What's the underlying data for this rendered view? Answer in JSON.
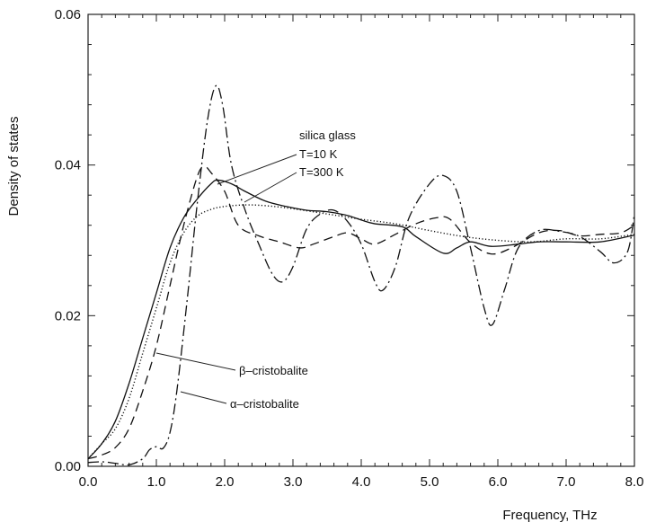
{
  "chart_data": {
    "type": "line",
    "xlabel": "Frequency, THz",
    "ylabel": "Density of states",
    "xlim": [
      0.0,
      8.0
    ],
    "ylim": [
      0.0,
      0.06
    ],
    "x_ticks": [
      "0.0",
      "1.0",
      "2.0",
      "3.0",
      "4.0",
      "5.0",
      "6.0",
      "7.0",
      "8.0"
    ],
    "y_ticks": [
      "0.00",
      "0.02",
      "0.04",
      "0.06"
    ],
    "grid": false,
    "series": [
      {
        "name": "T=10 K",
        "style": "solid",
        "points": [
          [
            0,
            0.001
          ],
          [
            0.2,
            0.003
          ],
          [
            0.4,
            0.006
          ],
          [
            0.6,
            0.011
          ],
          [
            0.8,
            0.017
          ],
          [
            1.0,
            0.023
          ],
          [
            1.2,
            0.029
          ],
          [
            1.4,
            0.033
          ],
          [
            1.6,
            0.0355
          ],
          [
            1.8,
            0.0375
          ],
          [
            1.9,
            0.038
          ],
          [
            2.1,
            0.0375
          ],
          [
            2.3,
            0.0365
          ],
          [
            2.6,
            0.0352
          ],
          [
            2.9,
            0.0345
          ],
          [
            3.2,
            0.034
          ],
          [
            3.5,
            0.0338
          ],
          [
            3.8,
            0.0333
          ],
          [
            4.0,
            0.0327
          ],
          [
            4.2,
            0.0322
          ],
          [
            4.6,
            0.0318
          ],
          [
            4.8,
            0.0305
          ],
          [
            5.2,
            0.0283
          ],
          [
            5.4,
            0.029
          ],
          [
            5.6,
            0.0298
          ],
          [
            5.9,
            0.0292
          ],
          [
            6.3,
            0.0295
          ],
          [
            6.6,
            0.0298
          ],
          [
            7.0,
            0.0298
          ],
          [
            7.5,
            0.0298
          ],
          [
            8.0,
            0.0307
          ]
        ]
      },
      {
        "name": "T=300 K",
        "style": "dotted",
        "points": [
          [
            0,
            0.001
          ],
          [
            0.2,
            0.003
          ],
          [
            0.4,
            0.005
          ],
          [
            0.6,
            0.009
          ],
          [
            0.8,
            0.015
          ],
          [
            1.0,
            0.021
          ],
          [
            1.2,
            0.027
          ],
          [
            1.4,
            0.031
          ],
          [
            1.6,
            0.0332
          ],
          [
            1.8,
            0.0341
          ],
          [
            2.0,
            0.0345
          ],
          [
            2.3,
            0.0347
          ],
          [
            2.6,
            0.0346
          ],
          [
            3.0,
            0.0342
          ],
          [
            3.5,
            0.0335
          ],
          [
            4.0,
            0.0328
          ],
          [
            4.5,
            0.0322
          ],
          [
            5.0,
            0.0313
          ],
          [
            5.5,
            0.0305
          ],
          [
            6.0,
            0.03
          ],
          [
            6.5,
            0.0298
          ],
          [
            7.0,
            0.0302
          ],
          [
            7.5,
            0.0302
          ],
          [
            8.0,
            0.0308
          ]
        ]
      },
      {
        "name": "β–cristobalite",
        "style": "dashed",
        "points": [
          [
            0,
            0.001
          ],
          [
            0.2,
            0.0015
          ],
          [
            0.4,
            0.0025
          ],
          [
            0.6,
            0.005
          ],
          [
            0.8,
            0.01
          ],
          [
            1.0,
            0.016
          ],
          [
            1.2,
            0.024
          ],
          [
            1.4,
            0.032
          ],
          [
            1.6,
            0.0385
          ],
          [
            1.7,
            0.0398
          ],
          [
            1.8,
            0.039
          ],
          [
            2.0,
            0.0365
          ],
          [
            2.2,
            0.032
          ],
          [
            2.5,
            0.0306
          ],
          [
            2.8,
            0.0298
          ],
          [
            3.1,
            0.029
          ],
          [
            3.3,
            0.0295
          ],
          [
            3.6,
            0.0305
          ],
          [
            3.8,
            0.031
          ],
          [
            4.0,
            0.0302
          ],
          [
            4.2,
            0.0295
          ],
          [
            4.5,
            0.0308
          ],
          [
            4.8,
            0.0322
          ],
          [
            5.1,
            0.033
          ],
          [
            5.3,
            0.0328
          ],
          [
            5.6,
            0.0297
          ],
          [
            5.9,
            0.0282
          ],
          [
            6.2,
            0.029
          ],
          [
            6.6,
            0.031
          ],
          [
            6.9,
            0.0313
          ],
          [
            7.2,
            0.0306
          ],
          [
            7.5,
            0.0308
          ],
          [
            7.8,
            0.031
          ],
          [
            8.0,
            0.032
          ]
        ]
      },
      {
        "name": "α–cristobalite",
        "style": "dash-dot",
        "points": [
          [
            0,
            0.0005
          ],
          [
            0.2,
            0.0006
          ],
          [
            0.4,
            0.0004
          ],
          [
            0.6,
            0.0002
          ],
          [
            0.8,
            0.001
          ],
          [
            0.9,
            0.0022
          ],
          [
            1.0,
            0.0026
          ],
          [
            1.1,
            0.0024
          ],
          [
            1.2,
            0.0045
          ],
          [
            1.3,
            0.01
          ],
          [
            1.45,
            0.022
          ],
          [
            1.6,
            0.035
          ],
          [
            1.75,
            0.046
          ],
          [
            1.87,
            0.0505
          ],
          [
            1.97,
            0.048
          ],
          [
            2.1,
            0.04
          ],
          [
            2.3,
            0.034
          ],
          [
            2.5,
            0.0295
          ],
          [
            2.7,
            0.0255
          ],
          [
            2.85,
            0.0245
          ],
          [
            3.0,
            0.0265
          ],
          [
            3.2,
            0.0315
          ],
          [
            3.4,
            0.0335
          ],
          [
            3.6,
            0.034
          ],
          [
            3.8,
            0.0325
          ],
          [
            4.0,
            0.0295
          ],
          [
            4.2,
            0.0245
          ],
          [
            4.32,
            0.0234
          ],
          [
            4.5,
            0.0265
          ],
          [
            4.7,
            0.033
          ],
          [
            5.0,
            0.0375
          ],
          [
            5.2,
            0.0386
          ],
          [
            5.4,
            0.0365
          ],
          [
            5.6,
            0.029
          ],
          [
            5.8,
            0.021
          ],
          [
            5.92,
            0.0188
          ],
          [
            6.1,
            0.0235
          ],
          [
            6.3,
            0.029
          ],
          [
            6.6,
            0.0313
          ],
          [
            6.9,
            0.0312
          ],
          [
            7.2,
            0.0305
          ],
          [
            7.5,
            0.0285
          ],
          [
            7.7,
            0.027
          ],
          [
            7.9,
            0.0285
          ],
          [
            8.0,
            0.0335
          ]
        ]
      }
    ],
    "annotations": [
      {
        "text": "silica glass"
      },
      {
        "text": "T=10 K"
      },
      {
        "text": "T=300 K"
      },
      {
        "text": "β–cristobalite"
      },
      {
        "text": "α–cristobalite"
      }
    ]
  }
}
